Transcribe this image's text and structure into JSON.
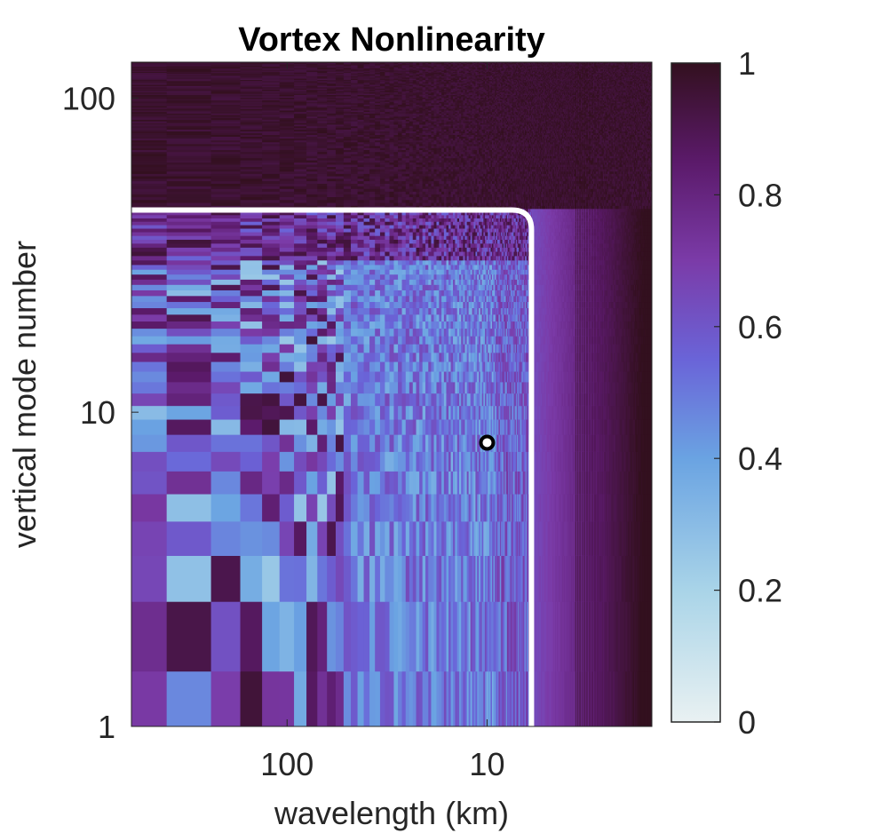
{
  "chart_data": {
    "type": "heatmap",
    "title": "Vortex Nonlinearity",
    "xlabel": "wavelength (km)",
    "ylabel": "vertical mode number",
    "x_scale": "log",
    "y_scale": "log",
    "x_direction": "reversed (wavelength decreases to the right)",
    "xlim": [
      600,
      1.5
    ],
    "ylim": [
      1,
      130
    ],
    "x_ticks": [
      100,
      10
    ],
    "x_tick_labels": [
      "100",
      "10"
    ],
    "y_ticks": [
      1,
      10,
      100
    ],
    "y_tick_labels": [
      "1",
      "10",
      "100"
    ],
    "colorbar": {
      "range": [
        0,
        1
      ],
      "ticks": [
        0,
        0.2,
        0.4,
        0.6,
        0.8,
        1
      ],
      "tick_labels": [
        "0",
        "0.2",
        "0.4",
        "0.6",
        "0.8",
        "1"
      ],
      "colormap": [
        "#e9f1f2",
        "#a9d4e8",
        "#6aa3e2",
        "#6a64d8",
        "#7b3ba8",
        "#5b1a6a",
        "#33101f"
      ]
    },
    "boundary_curve": {
      "color": "#ffffff",
      "wavelength_km_at_vertical": 6,
      "mode_at_horizontal": 44,
      "description": "white curve: horizontal at mode ~44 for long wavelengths, bending to vertical at ~6 km"
    },
    "marker": {
      "wavelength_km": 10,
      "mode": 8,
      "style": "white circle, black outline"
    },
    "field_summary": "values near 1 above the boundary curve and at wavelengths shorter than ~6 km; mixed 0.2–0.9 values (mostly ~0.4–0.6) inside the curve"
  }
}
